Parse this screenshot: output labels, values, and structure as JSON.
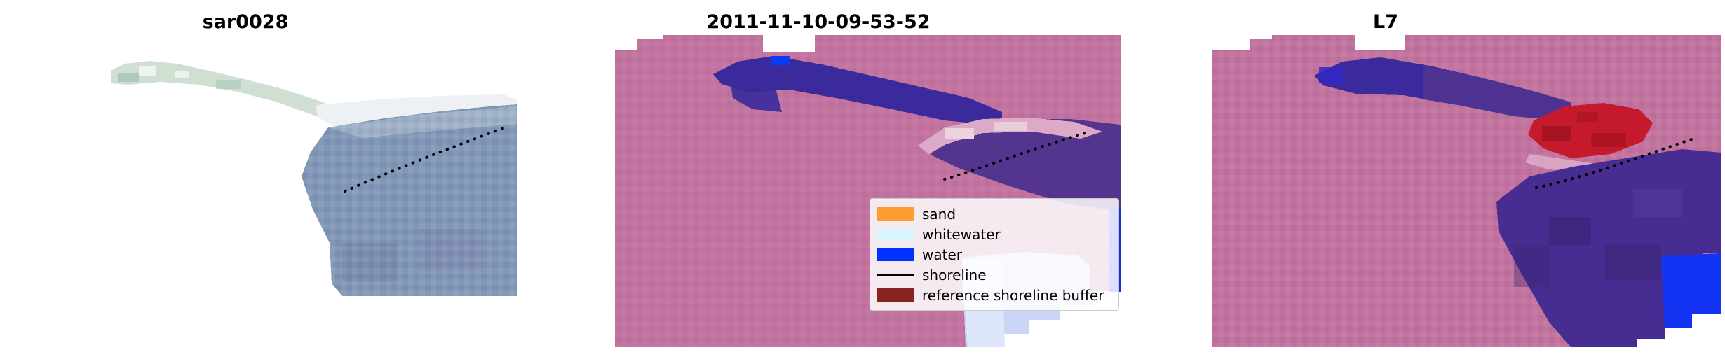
{
  "figure": {
    "background": "#ffffff"
  },
  "panels": {
    "sar": {
      "title": "sar0028"
    },
    "classified": {
      "title": "2011-11-10-09-53-52"
    },
    "l7": {
      "title": "L7"
    }
  },
  "legend": {
    "items": [
      {
        "label": "sand",
        "color": "#ff9d33",
        "type": "patch"
      },
      {
        "label": "whitewater",
        "color": "#d9f6ff",
        "type": "patch"
      },
      {
        "label": "water",
        "color": "#0033ff",
        "type": "patch"
      },
      {
        "label": "shoreline",
        "color": "#000000",
        "type": "line"
      },
      {
        "label": "reference shoreline buffer",
        "color": "#8b2222",
        "type": "patch"
      }
    ]
  },
  "chart_data": [
    {
      "type": "heatmap",
      "title": "sar0028",
      "description": "SAR backscatter image patch, masked irregular extent, light tones upper-left strip, bright diagonal band, dark blue-gray water region lower right, dotted black shoreline across middle"
    },
    {
      "type": "heatmap",
      "title": "2011-11-10-09-53-52",
      "description": "Classified satellite image: mauve land background, indigo/purple vegetation-shadow band upper middle, purple water-adjacent region right, pale pink sand band with dotted shoreline, pale lavender and bright blue water at lower right, legend overlay",
      "legend": [
        "sand",
        "whitewater",
        "water",
        "shoreline",
        "reference shoreline buffer"
      ]
    },
    {
      "type": "heatmap",
      "title": "L7",
      "description": "Landsat 7 classified image: mauve background, indigo-purple band upper middle, red reference shoreline buffer patch mid-right with dotted shoreline, large dark purple region lower right, bright blue water corner"
    }
  ],
  "colors": {
    "pink_bg": "#c2739f",
    "indigo": "#3a2a9b",
    "indigo_bright": "#3526c8",
    "blue_patch": "#0a3cf5",
    "purple_mid": "#53348f",
    "pink_band": "#dcaac6",
    "pink_band_light": "#ecd3de",
    "lavender": "#c9d6f5",
    "lavender_light": "#dde6fa",
    "blue_strip": "#0a2ff0",
    "red_patch": "#c51a2b",
    "red_dark": "#9e1120",
    "purple_blob": "#472d92",
    "purple_blob_dark": "#38226f",
    "purple_blob_light": "#5a3fa6",
    "blue_corner": "#1334f2",
    "sar_strip": "#cfdfd2",
    "sar_strip_light": "#eef5ee",
    "sar_strip_dark": "#aec8bc",
    "sar_band": "#edf1f4",
    "sar_blob": "#8298b8",
    "sar_blob_light": "#a8bacf",
    "shoreline": "#000000",
    "title_color": "#000000"
  }
}
